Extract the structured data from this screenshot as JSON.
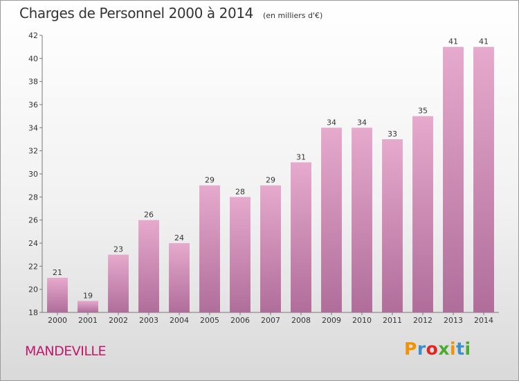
{
  "chart_data": {
    "type": "bar",
    "title": "Charges de Personnel 2000 à 2014",
    "subtitle": "(en milliers d'€)",
    "categories": [
      "2000",
      "2001",
      "2002",
      "2003",
      "2004",
      "2005",
      "2006",
      "2007",
      "2008",
      "2009",
      "2010",
      "2011",
      "2012",
      "2013",
      "2014"
    ],
    "values": [
      21,
      19,
      23,
      26,
      24,
      29,
      28,
      29,
      31,
      34,
      34,
      33,
      35,
      41,
      41
    ],
    "ylim": [
      18,
      42
    ],
    "yticks": [
      18,
      20,
      22,
      24,
      26,
      28,
      30,
      32,
      34,
      36,
      38,
      40,
      42
    ],
    "grid": false,
    "legend": "none",
    "bar_color_top": "#e6aacd",
    "bar_color_bottom": "#b06d9a"
  },
  "footer": {
    "city": "MANDEVILLE",
    "logo": "Proxiti",
    "logo_colors": [
      "#f39200",
      "#3d8fcc",
      "#e52421",
      "#4bab2f",
      "#f39200",
      "#3d8fcc",
      "#4bab2f"
    ]
  }
}
